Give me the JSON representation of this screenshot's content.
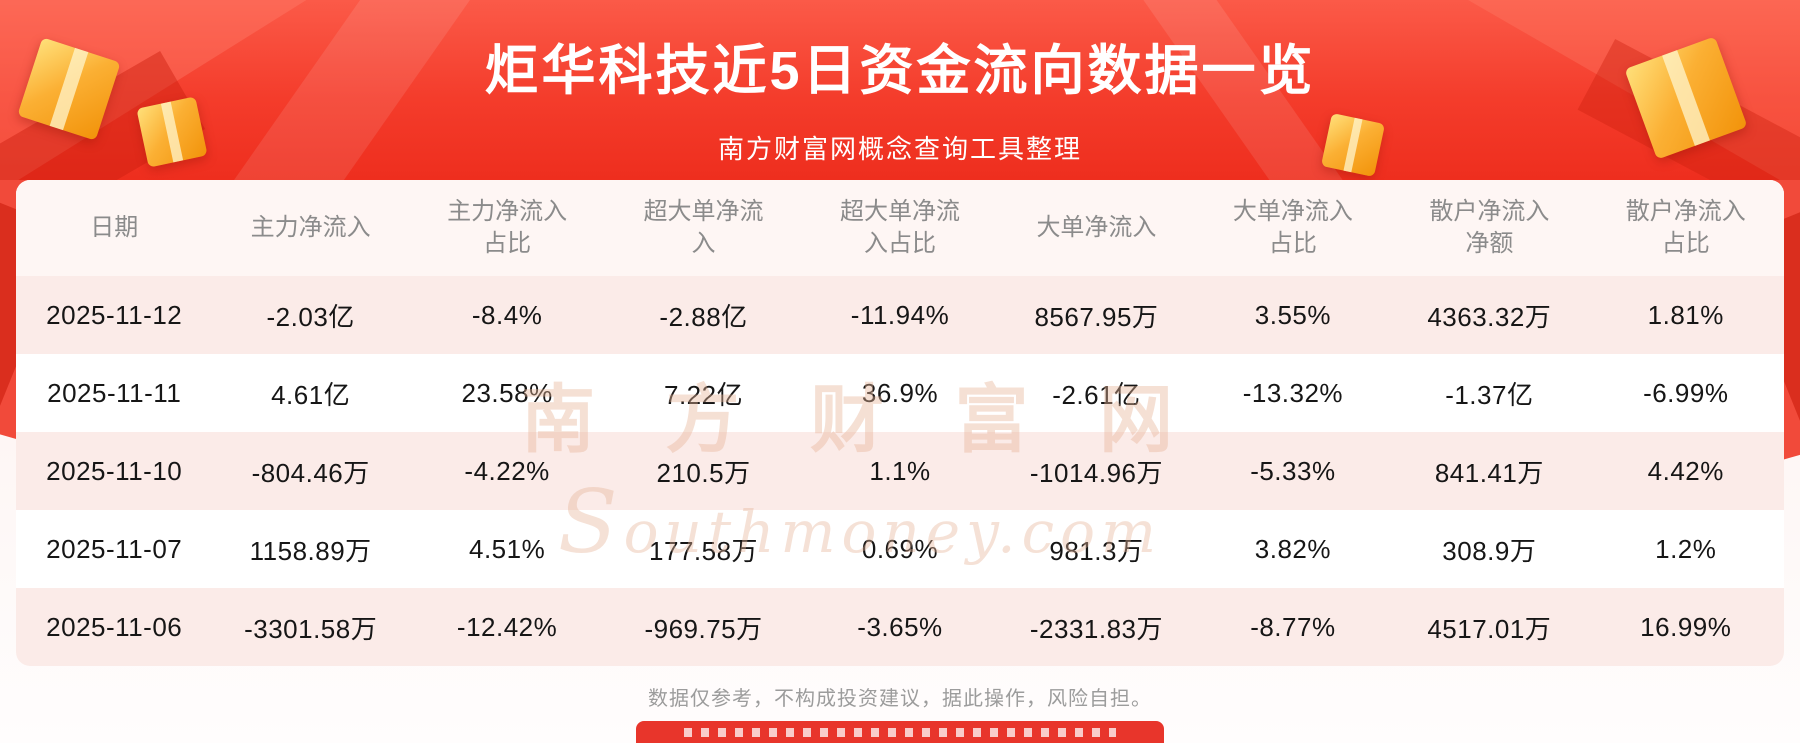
{
  "banner": {
    "title": "炬华科技近5日资金流向数据一览",
    "subtitle": "南方财富网概念查询工具整理"
  },
  "table": {
    "headers_display": [
      "日期",
      "主力净流入",
      "主力净流入\n占比",
      "超大单净流\n入",
      "超大单净流\n入占比",
      "大单净流入",
      "大单净流入\n占比",
      "散户净流入\n净额",
      "散户净流入\n占比"
    ]
  },
  "watermark": {
    "cn": "南 方 财 富 网",
    "en": "Southmoney.com"
  },
  "footer": {
    "disclaimer": "数据仅参考，不构成投资建议，据此操作，风险自担。"
  },
  "colors": {
    "banner_red": "#f43c2b",
    "row_pink": "#fbebe8",
    "accent_gold": "#fbb034",
    "header_text": "#8b8b8b",
    "cell_text": "#161616"
  },
  "chart_data": {
    "type": "table",
    "title": "炬华科技近5日资金流向数据一览",
    "columns": [
      "日期",
      "主力净流入",
      "主力净流入占比",
      "超大单净流入",
      "超大单净流入占比",
      "大单净流入",
      "大单净流入占比",
      "散户净流入净额",
      "散户净流入占比"
    ],
    "rows": [
      [
        "2025-11-12",
        "-2.03亿",
        "-8.4%",
        "-2.88亿",
        "-11.94%",
        "8567.95万",
        "3.55%",
        "4363.32万",
        "1.81%"
      ],
      [
        "2025-11-11",
        "4.61亿",
        "23.58%",
        "7.22亿",
        "36.9%",
        "-2.61亿",
        "-13.32%",
        "-1.37亿",
        "-6.99%"
      ],
      [
        "2025-11-10",
        "-804.46万",
        "-4.22%",
        "210.5万",
        "1.1%",
        "-1014.96万",
        "-5.33%",
        "841.41万",
        "4.42%"
      ],
      [
        "2025-11-07",
        "1158.89万",
        "4.51%",
        "177.58万",
        "0.69%",
        "981.3万",
        "3.82%",
        "308.9万",
        "1.2%"
      ],
      [
        "2025-11-06",
        "-3301.58万",
        "-12.42%",
        "-969.75万",
        "-3.65%",
        "-2331.83万",
        "-8.77%",
        "4517.01万",
        "16.99%"
      ]
    ]
  }
}
